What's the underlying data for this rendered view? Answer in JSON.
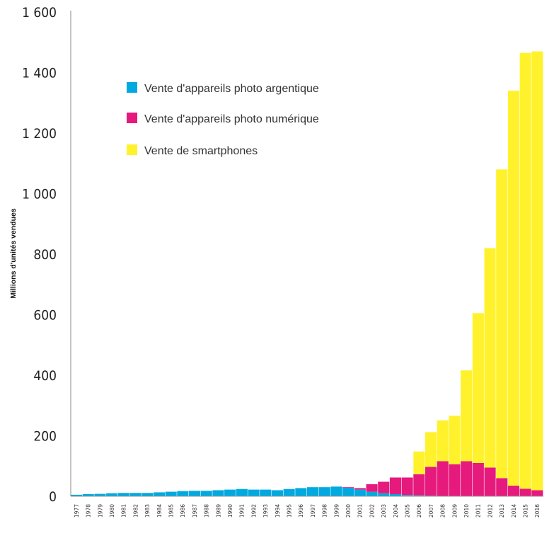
{
  "colors": {
    "argentique": "#00a9e0",
    "numerique": "#e6197d",
    "smartphone": "#fff22d"
  },
  "chart_data": {
    "type": "bar",
    "stacked": true,
    "ylabel": "Millions d'unités vendues",
    "ylim": [
      0,
      1600
    ],
    "yticks": [
      "0",
      "200",
      "400",
      "600",
      "800",
      "1 000",
      "1 200",
      "1 400",
      "1 600"
    ],
    "ytick_values": [
      0,
      200,
      400,
      600,
      800,
      1000,
      1200,
      1400,
      1600
    ],
    "legend_position": "upper-left",
    "categories": [
      "1977",
      "1978",
      "1979",
      "1980",
      "1981",
      "1982",
      "1983",
      "1984",
      "1985",
      "1986",
      "1987",
      "1988",
      "1989",
      "1990",
      "1991",
      "1992",
      "1993",
      "1994",
      "1995",
      "1996",
      "1997",
      "1998",
      "1999",
      "2000",
      "2001",
      "2002",
      "2003",
      "2004",
      "2005",
      "2006",
      "2007",
      "2008",
      "2009",
      "2010",
      "2011",
      "2012",
      "2013",
      "2014",
      "2015",
      "2016"
    ],
    "series": [
      {
        "name": "Vente d'appareils photo argentique",
        "values": [
          5,
          7,
          8,
          10,
          11,
          11,
          11,
          13,
          15,
          17,
          18,
          18,
          20,
          22,
          24,
          22,
          22,
          20,
          24,
          27,
          30,
          30,
          32,
          28,
          22,
          15,
          10,
          7,
          4,
          3,
          2,
          1,
          1,
          1,
          0,
          0,
          0,
          0,
          0,
          0
        ]
      },
      {
        "name": "Vente d'appareils photo numérique",
        "values": [
          0,
          0,
          0,
          0,
          0,
          0,
          0,
          0,
          0,
          0,
          0,
          0,
          0,
          0,
          0,
          0,
          0,
          0,
          0,
          0,
          0,
          0,
          0,
          2,
          5,
          25,
          38,
          55,
          58,
          70,
          95,
          115,
          105,
          115,
          110,
          95,
          60,
          35,
          25,
          20
        ]
      },
      {
        "name": "Vente de smartphones",
        "values": [
          0,
          0,
          0,
          0,
          0,
          0,
          0,
          0,
          0,
          0,
          0,
          0,
          0,
          0,
          0,
          0,
          0,
          0,
          0,
          0,
          0,
          0,
          0,
          0,
          0,
          0,
          0,
          0,
          0,
          75,
          115,
          135,
          160,
          300,
          495,
          725,
          1020,
          1305,
          1440,
          1450
        ]
      }
    ]
  }
}
